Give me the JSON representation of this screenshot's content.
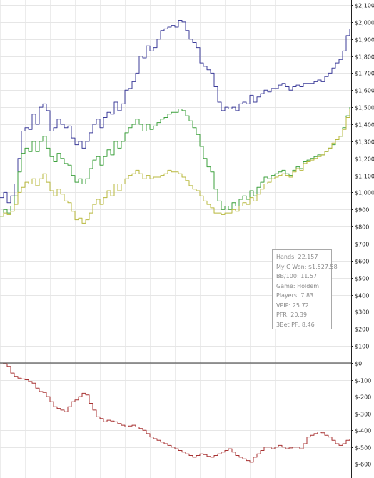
{
  "chart_data": [
    {
      "type": "line",
      "title": "",
      "xlabel": "",
      "ylabel": "",
      "x": [
        0,
        5,
        10,
        15,
        20,
        25,
        30,
        35,
        40,
        45,
        50,
        55,
        60,
        65,
        70,
        75,
        80,
        85,
        90,
        95,
        100,
        105,
        110,
        115,
        120,
        125,
        130,
        135,
        140,
        145,
        150,
        155,
        160,
        165,
        170,
        175,
        180,
        185,
        190,
        195,
        200,
        205,
        210,
        215,
        220,
        225,
        230,
        235,
        240,
        245,
        250,
        255,
        260,
        265,
        270,
        275,
        280,
        285,
        290,
        295,
        300,
        305,
        310,
        315,
        320,
        325,
        330,
        335,
        340,
        345,
        350,
        355,
        360,
        365,
        370,
        375,
        380,
        385,
        390,
        395,
        400,
        405,
        410,
        415,
        420,
        425,
        430,
        435,
        440,
        445,
        450,
        455,
        460,
        465,
        470,
        475,
        480,
        485,
        490
      ],
      "ylim": [
        0,
        2100
      ],
      "y_tick_values": [
        0,
        100,
        200,
        300,
        400,
        500,
        600,
        700,
        800,
        900,
        1000,
        1100,
        1200,
        1300,
        1400,
        1500,
        1600,
        1700,
        1800,
        1900,
        2000,
        2100
      ],
      "y_tick_labels": [
        "$0",
        "$100",
        "$200",
        "$300",
        "$400",
        "$500",
        "$600",
        "$700",
        "$800",
        "$900",
        "$1,000",
        "$1,100",
        "$1,200",
        "$1,300",
        "$1,400",
        "$1,500",
        "$1,600",
        "$1,700",
        "$1,800",
        "$1,900",
        "$2,000",
        "$2,100"
      ],
      "grid": true,
      "series": [
        {
          "color": "#3c3c9a",
          "values": [
            970,
            1000,
            940,
            980,
            1050,
            1200,
            1360,
            1380,
            1370,
            1460,
            1400,
            1500,
            1520,
            1480,
            1360,
            1380,
            1430,
            1400,
            1380,
            1390,
            1320,
            1280,
            1300,
            1260,
            1300,
            1350,
            1400,
            1430,
            1380,
            1440,
            1470,
            1460,
            1530,
            1480,
            1520,
            1600,
            1610,
            1650,
            1700,
            1800,
            1790,
            1860,
            1830,
            1850,
            1900,
            1950,
            1960,
            1970,
            1980,
            1970,
            2010,
            2000,
            1950,
            1900,
            1880,
            1850,
            1760,
            1740,
            1720,
            1700,
            1620,
            1530,
            1480,
            1500,
            1490,
            1500,
            1480,
            1520,
            1530,
            1520,
            1570,
            1530,
            1560,
            1580,
            1600,
            1590,
            1610,
            1610,
            1630,
            1640,
            1620,
            1600,
            1620,
            1630,
            1620,
            1640,
            1640,
            1640,
            1650,
            1660,
            1650,
            1680,
            1700,
            1730,
            1760,
            1780,
            1830,
            1920,
            1960
          ]
        },
        {
          "color": "#3ca03c",
          "values": [
            860,
            900,
            880,
            920,
            980,
            1120,
            1230,
            1260,
            1240,
            1300,
            1240,
            1300,
            1330,
            1260,
            1210,
            1180,
            1230,
            1200,
            1170,
            1160,
            1100,
            1060,
            1080,
            1050,
            1080,
            1140,
            1190,
            1210,
            1160,
            1210,
            1250,
            1220,
            1300,
            1260,
            1300,
            1350,
            1380,
            1400,
            1430,
            1400,
            1360,
            1400,
            1370,
            1390,
            1410,
            1430,
            1440,
            1460,
            1470,
            1470,
            1490,
            1480,
            1450,
            1420,
            1380,
            1340,
            1270,
            1200,
            1150,
            1120,
            1020,
            950,
            900,
            920,
            900,
            940,
            920,
            960,
            980,
            960,
            1010,
            980,
            1030,
            1060,
            1090,
            1080,
            1100,
            1110,
            1120,
            1130,
            1110,
            1100,
            1130,
            1150,
            1140,
            1180,
            1190,
            1200,
            1210,
            1220,
            1220,
            1240,
            1260,
            1280,
            1310,
            1330,
            1380,
            1450,
            1500
          ]
        },
        {
          "color": "#b8b83c",
          "values": [
            860,
            880,
            870,
            890,
            930,
            1000,
            1030,
            1060,
            1050,
            1080,
            1040,
            1080,
            1110,
            1060,
            1010,
            980,
            1020,
            990,
            950,
            940,
            890,
            840,
            850,
            820,
            840,
            880,
            930,
            960,
            930,
            970,
            1010,
            980,
            1050,
            1010,
            1050,
            1080,
            1100,
            1110,
            1130,
            1110,
            1080,
            1100,
            1080,
            1090,
            1090,
            1100,
            1110,
            1130,
            1120,
            1120,
            1110,
            1090,
            1070,
            1040,
            1020,
            1010,
            980,
            950,
            930,
            910,
            880,
            880,
            870,
            880,
            880,
            900,
            890,
            920,
            940,
            930,
            970,
            950,
            990,
            1020,
            1050,
            1060,
            1080,
            1090,
            1100,
            1110,
            1100,
            1090,
            1120,
            1140,
            1130,
            1170,
            1180,
            1190,
            1200,
            1210,
            1220,
            1240,
            1260,
            1290,
            1310,
            1330,
            1370,
            1440,
            1490
          ]
        }
      ]
    },
    {
      "type": "line",
      "title": "",
      "xlabel": "",
      "ylabel": "",
      "x": [
        0,
        5,
        10,
        15,
        20,
        25,
        30,
        35,
        40,
        45,
        50,
        55,
        60,
        65,
        70,
        75,
        80,
        85,
        90,
        95,
        100,
        105,
        110,
        115,
        120,
        125,
        130,
        135,
        140,
        145,
        150,
        155,
        160,
        165,
        170,
        175,
        180,
        185,
        190,
        195,
        200,
        205,
        210,
        215,
        220,
        225,
        230,
        235,
        240,
        245,
        250,
        255,
        260,
        265,
        270,
        275,
        280,
        285,
        290,
        295,
        300,
        305,
        310,
        315,
        320,
        325,
        330,
        335,
        340,
        345,
        350,
        355,
        360,
        365,
        370,
        375,
        380,
        385,
        390,
        395,
        400,
        405,
        410,
        415,
        420,
        425,
        430,
        435,
        440,
        445,
        450,
        455,
        460,
        465,
        470,
        475,
        480,
        485,
        490
      ],
      "ylim": [
        -620,
        0
      ],
      "y_tick_values": [
        0,
        -100,
        -200,
        -300,
        -400,
        -500,
        -600
      ],
      "y_tick_labels": [
        "$0",
        "$-100",
        "$-200",
        "$-300",
        "$-400",
        "$-500",
        "$-600"
      ],
      "grid": true,
      "series": [
        {
          "color": "#a83232",
          "values": [
            0,
            -5,
            -20,
            -60,
            -80,
            -90,
            -95,
            -100,
            -110,
            -120,
            -150,
            -170,
            -175,
            -200,
            -230,
            -260,
            -270,
            -280,
            -290,
            -260,
            -230,
            -220,
            -200,
            -180,
            -190,
            -240,
            -280,
            -320,
            -330,
            -350,
            -340,
            -345,
            -350,
            -360,
            -370,
            -380,
            -375,
            -370,
            -380,
            -390,
            -400,
            -420,
            -440,
            -450,
            -460,
            -470,
            -480,
            -490,
            -500,
            -510,
            -520,
            -530,
            -540,
            -550,
            -560,
            -550,
            -540,
            -545,
            -555,
            -560,
            -550,
            -540,
            -530,
            -520,
            -510,
            -530,
            -550,
            -560,
            -570,
            -580,
            -590,
            -560,
            -540,
            -520,
            -500,
            -500,
            -510,
            -500,
            -490,
            -500,
            -510,
            -505,
            -500,
            -500,
            -510,
            -480,
            -440,
            -430,
            -420,
            -410,
            -415,
            -430,
            -440,
            -460,
            -480,
            -490,
            -480,
            -460,
            -450
          ]
        }
      ]
    }
  ],
  "stats": {
    "rows": [
      {
        "label": "Hands",
        "value": "22,157"
      },
      {
        "label": "My C Won",
        "value": "$1,527.58"
      },
      {
        "label": "BB/100",
        "value": "11.57"
      },
      {
        "label": "Game",
        "value": "Holdem"
      },
      {
        "label": "Players",
        "value": "7.83"
      },
      {
        "label": "VPIP",
        "value": "25.72"
      },
      {
        "label": "PFR",
        "value": "20.39"
      },
      {
        "label": "3Bet PF",
        "value": "8.46"
      }
    ]
  }
}
